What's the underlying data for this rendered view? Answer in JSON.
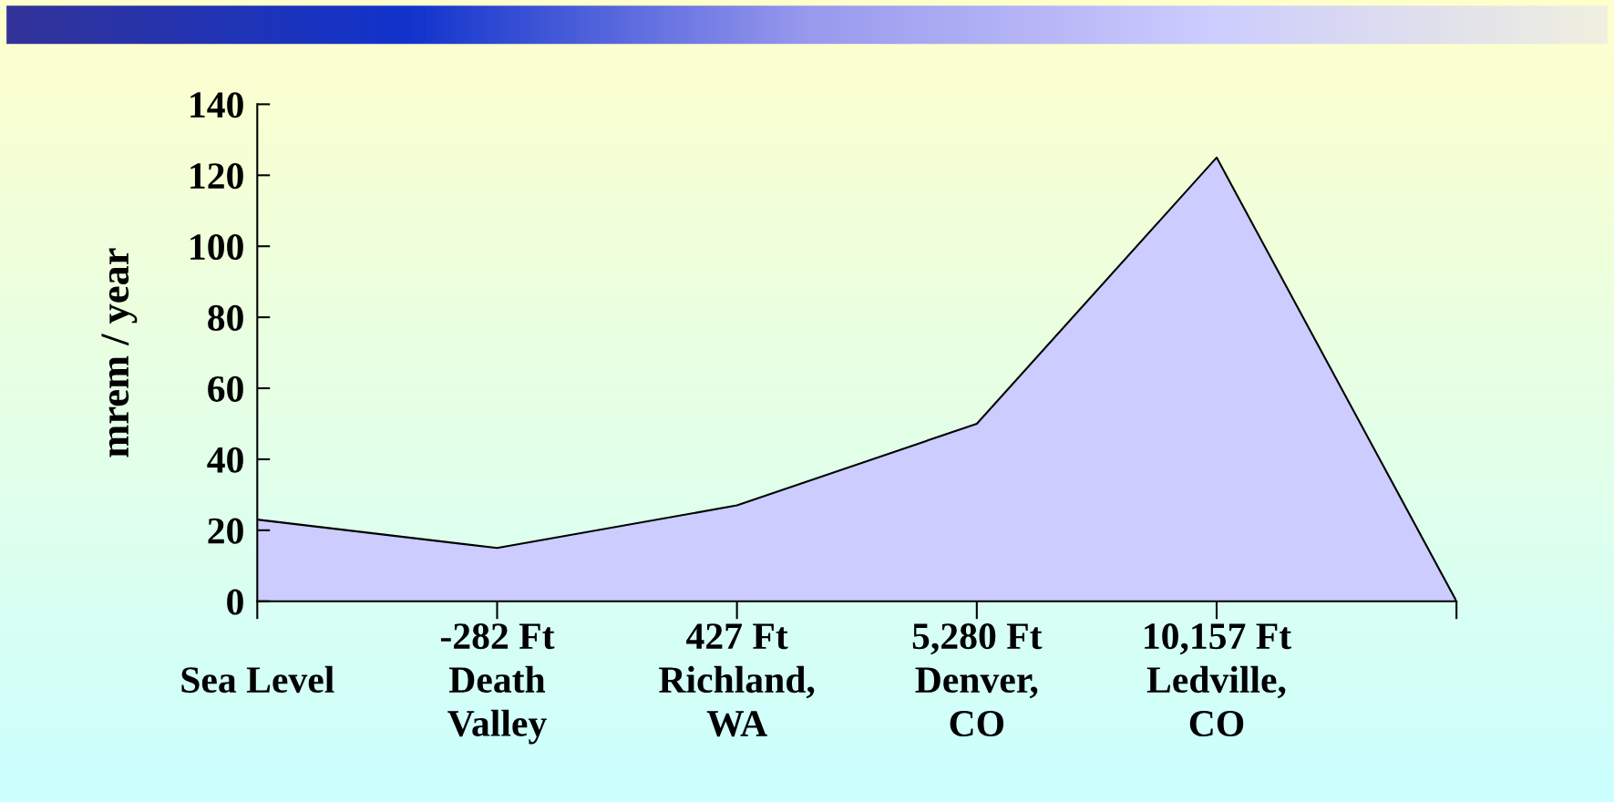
{
  "chart_data": {
    "type": "area",
    "ylabel": "mrem / year",
    "categories": [
      "Sea Level",
      "-282 Ft\nDeath\nValley",
      "427 Ft\nRichland,\nWA",
      "5,280 Ft\nDenver,\nCO",
      "10,157 Ft\nLedville,\nCO",
      null
    ],
    "series": [
      {
        "color": "#ccccff",
        "values": [
          23,
          15,
          27,
          50,
          125,
          0
        ]
      }
    ],
    "ylim": [
      0,
      140
    ],
    "yticks": [
      0,
      20,
      40,
      60,
      80,
      100,
      120,
      140
    ]
  }
}
